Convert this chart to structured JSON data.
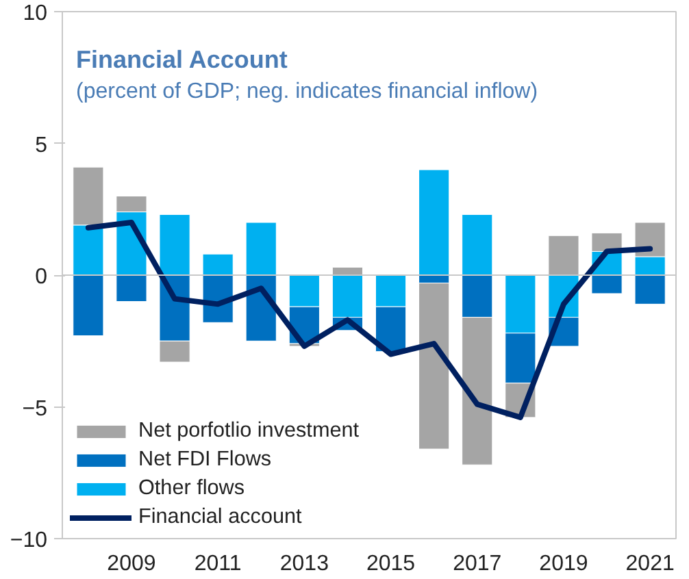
{
  "chart_data": {
    "type": "bar",
    "stacked": true,
    "title": "Financial Account",
    "subtitle": "(percent of GDP; neg. indicates financial inflow)",
    "categories": [
      null,
      "2009",
      null,
      "2011",
      null,
      "2013",
      null,
      "2015",
      null,
      "2017",
      null,
      "2019",
      null,
      "2021"
    ],
    "series": [
      {
        "name": "Other flows",
        "color": "#00b0f0",
        "values": [
          1.9,
          2.4,
          2.3,
          0.8,
          2.0,
          -1.2,
          -1.6,
          -1.2,
          4.0,
          2.3,
          -2.2,
          -1.6,
          0.9,
          0.7
        ]
      },
      {
        "name": "Net FDI Flows",
        "color": "#0070c0",
        "values": [
          -2.3,
          -1.0,
          -2.5,
          -1.8,
          -2.5,
          -1.4,
          -0.5,
          -1.7,
          -0.3,
          -1.6,
          -1.9,
          -1.1,
          -0.7,
          -1.1
        ]
      },
      {
        "name": "Net porfotlio investment",
        "color": "#a5a5a5",
        "values": [
          2.2,
          0.6,
          -0.8,
          null,
          null,
          -0.1,
          0.3,
          null,
          -6.3,
          -5.6,
          -1.3,
          1.5,
          0.7,
          1.3
        ]
      },
      {
        "name": "Financial account",
        "type": "line",
        "color": "#002060",
        "values": [
          1.8,
          2.0,
          -0.9,
          -1.1,
          -0.5,
          -2.7,
          -1.7,
          -3.0,
          -2.6,
          -4.9,
          -5.4,
          -1.1,
          0.9,
          1.0
        ]
      }
    ],
    "ylim": [
      -10,
      10
    ],
    "yticks": [
      -10,
      -5,
      0,
      5,
      10
    ],
    "ref_lines": [
      {
        "axis": "y",
        "value": 0,
        "color": "#c8c8c8"
      }
    ],
    "grid": false,
    "legend": "bottom left"
  }
}
